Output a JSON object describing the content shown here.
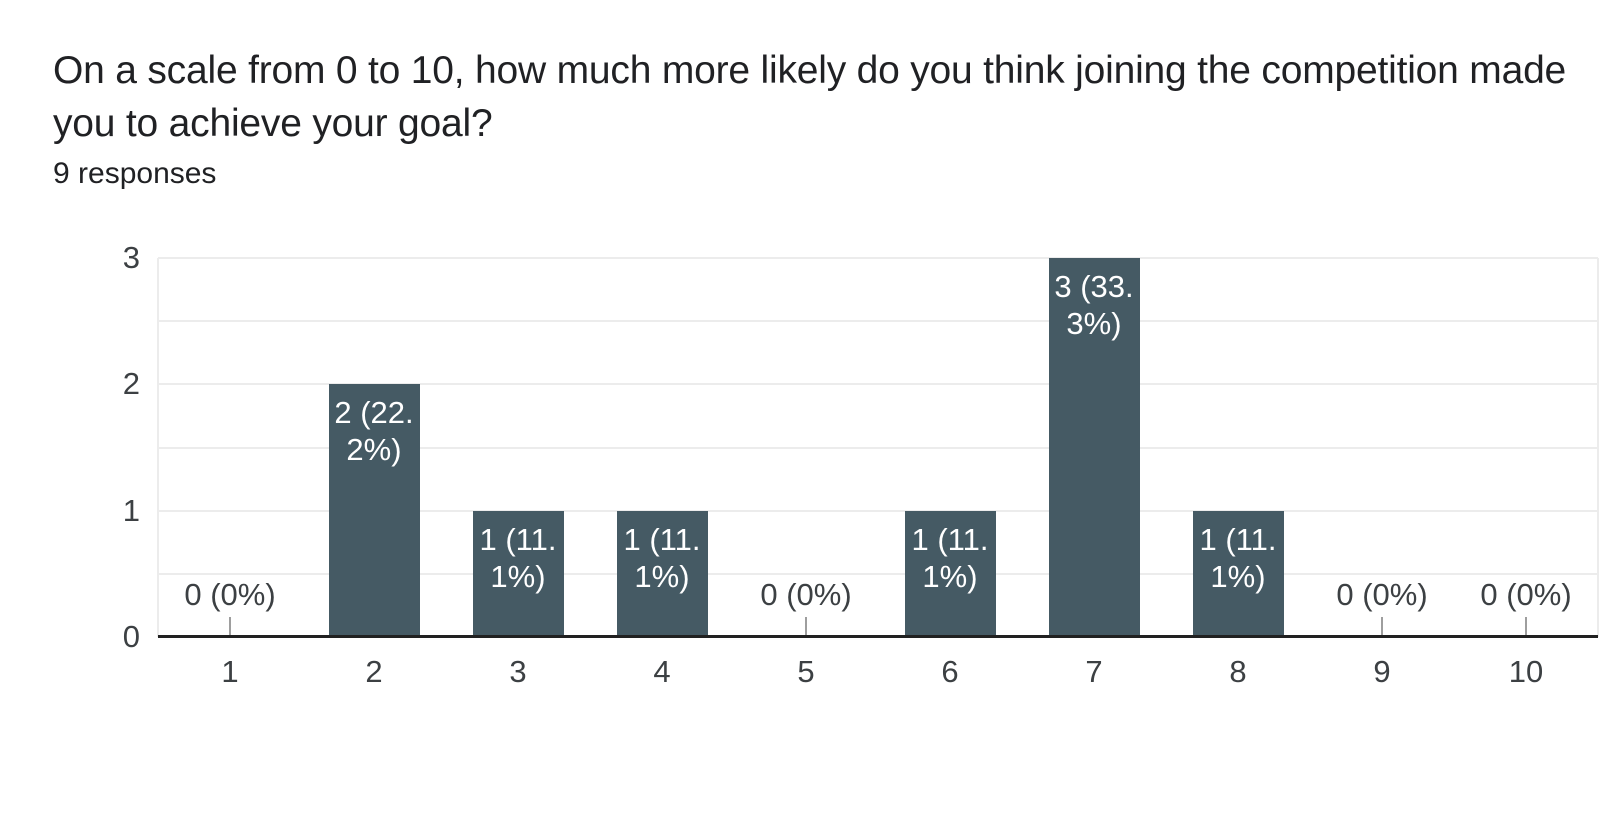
{
  "header": {
    "title": "On a scale from 0 to 10, how much more likely do you think joining the competition made you to achieve your goal?",
    "subtitle": "9 responses"
  },
  "chart_data": {
    "type": "bar",
    "title": "On a scale from 0 to 10, how much more likely do you think joining the competition made you to achieve your goal?",
    "subtitle": "9 responses",
    "total_responses": 9,
    "categories": [
      "1",
      "2",
      "3",
      "4",
      "5",
      "6",
      "7",
      "8",
      "9",
      "10"
    ],
    "values": [
      0,
      2,
      1,
      1,
      0,
      1,
      3,
      1,
      0,
      0
    ],
    "labels": [
      "0 (0%)",
      "2 (22.2%)",
      "1 (11.1%)",
      "1 (11.1%)",
      "0 (0%)",
      "1 (11.1%)",
      "3 (33.3%)",
      "1 (11.1%)",
      "0 (0%)",
      "0 (0%)"
    ],
    "label_lines": [
      [
        "0 (0%)"
      ],
      [
        "2 (22.",
        "2%)"
      ],
      [
        "1 (11.",
        "1%)"
      ],
      [
        "1 (11.",
        "1%)"
      ],
      [
        "0 (0%)"
      ],
      [
        "1 (11.",
        "1%)"
      ],
      [
        "3 (33.",
        "3%)"
      ],
      [
        "1 (11.",
        "1%)"
      ],
      [
        "0 (0%)"
      ],
      [
        "0 (0%)"
      ]
    ],
    "xlabel": "",
    "ylabel": "",
    "y_ticks": [
      0,
      1,
      2,
      3
    ],
    "ylim": [
      0,
      3
    ],
    "grid": true,
    "grid_interval": 0.5,
    "legend": "none",
    "colors": {
      "bar": "#455a64",
      "grid": "#ececec",
      "plot_border": "#ececec",
      "baseline": "#212121",
      "axis_text": "#3c4043",
      "value_label_text": "#ffffff",
      "zero_tick": "#9e9e9e"
    }
  }
}
